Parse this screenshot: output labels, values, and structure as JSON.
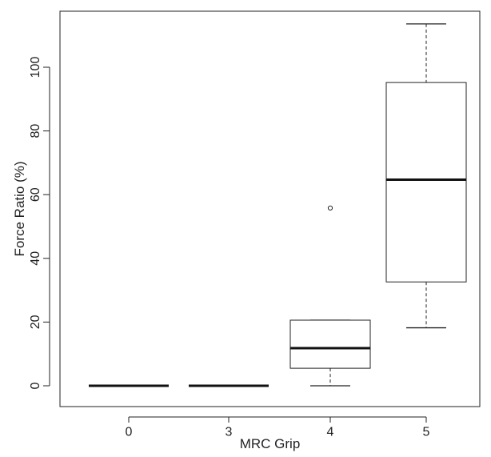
{
  "chart_data": {
    "type": "box",
    "xlabel": "MRC Grip",
    "ylabel": "Force Ratio (%)",
    "ylim": [
      -6,
      117
    ],
    "yticks": [
      0,
      20,
      40,
      60,
      80,
      100
    ],
    "grid": false,
    "categories": [
      "0",
      "3",
      "4",
      "5"
    ],
    "boxes": [
      {
        "category": "0",
        "whisker_low": 0,
        "q1": 0,
        "median": 0,
        "q3": 0,
        "whisker_high": 0,
        "outliers": []
      },
      {
        "category": "3",
        "whisker_low": 0,
        "q1": 0,
        "median": 0,
        "q3": 0,
        "whisker_high": 0,
        "outliers": []
      },
      {
        "category": "4",
        "whisker_low": 0,
        "q1": 5.5,
        "median": 11.8,
        "q3": 20.6,
        "whisker_high": 20.6,
        "outliers": [
          55.8
        ]
      },
      {
        "category": "5",
        "whisker_low": 18.2,
        "q1": 32.6,
        "median": 64.7,
        "q3": 95.2,
        "whisker_high": 113.6,
        "outliers": []
      }
    ]
  }
}
